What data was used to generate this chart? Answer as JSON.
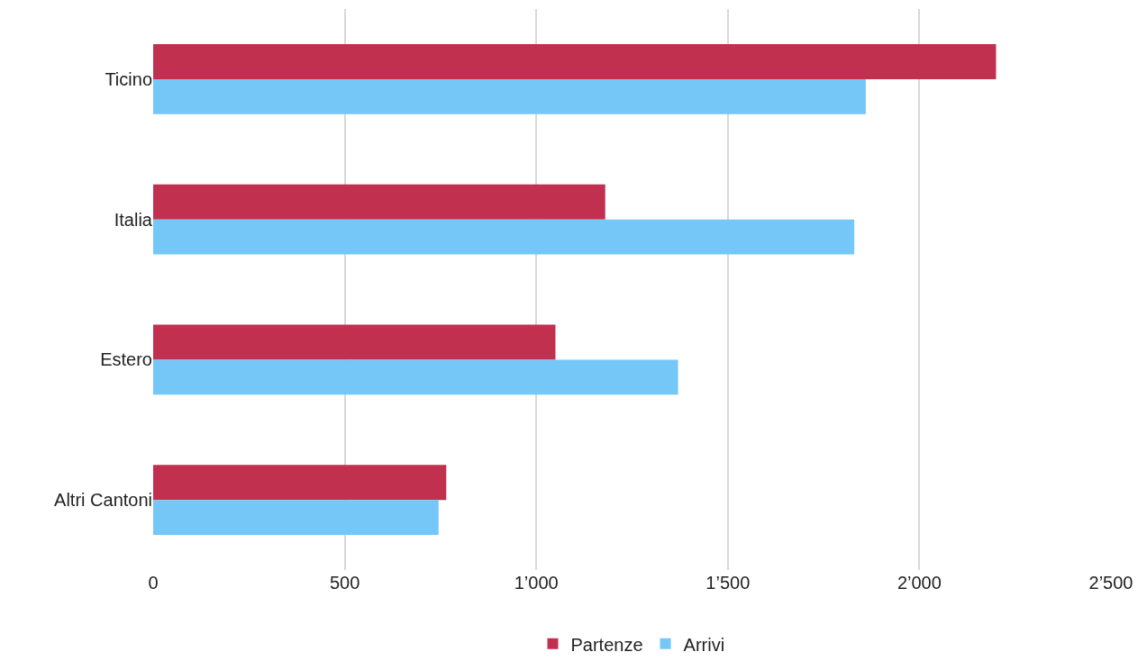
{
  "chart_data": {
    "type": "bar",
    "orientation": "horizontal",
    "categories": [
      "Ticino",
      "Italia",
      "Estero",
      "Altri Cantoni"
    ],
    "series": [
      {
        "name": "Partenze",
        "color": "#c2304f",
        "values": [
          2200,
          1180,
          1050,
          765
        ]
      },
      {
        "name": "Arrivi",
        "color": "#74c7f6",
        "values": [
          1860,
          1830,
          1370,
          745
        ]
      }
    ],
    "xlim": [
      0,
      2500
    ],
    "xticks": [
      0,
      500,
      {
        "value": 1000,
        "label": "1’000"
      },
      {
        "value": 1500,
        "label": "1’500"
      },
      {
        "value": 2000,
        "label": "2’000"
      },
      {
        "value": 2500,
        "label": "2’500"
      }
    ],
    "grid": "x",
    "legend": "bottom"
  }
}
